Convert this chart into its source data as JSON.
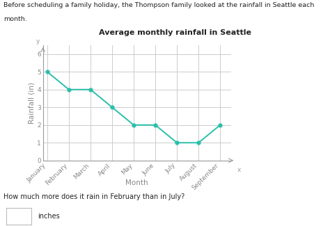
{
  "title": "Average monthly rainfall in Seattle",
  "xlabel": "Month",
  "ylabel": "Rainfall (in)",
  "months": [
    "January",
    "February",
    "March",
    "April",
    "May",
    "June",
    "July",
    "August",
    "September"
  ],
  "values": [
    5,
    4,
    4,
    3,
    2,
    2,
    1,
    1,
    2
  ],
  "ylim": [
    0,
    6.5
  ],
  "yticks": [
    0,
    1,
    2,
    3,
    4,
    5,
    6
  ],
  "line_color": "#2abfab",
  "marker_color": "#2abfab",
  "bg_color": "#ffffff",
  "grid_color": "#cccccc",
  "text_color": "#888888",
  "title_fontsize": 8,
  "axis_label_fontsize": 7.5,
  "tick_fontsize": 6.5,
  "top_text_line1": "Before scheduling a family holiday, the Thompson family looked at the rainfall in Seattle each",
  "top_text_line2": "month.",
  "bottom_question": "How much more does it rain in February than in July?",
  "bottom_answer_label": "inches"
}
